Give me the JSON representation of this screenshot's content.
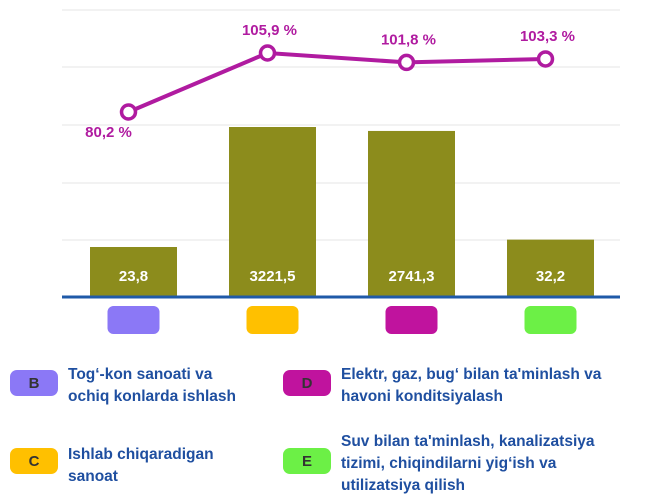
{
  "chart_data": {
    "type": "bar",
    "categories": [
      "B",
      "C",
      "D",
      "E"
    ],
    "category_colors": [
      "#8b78f6",
      "#ffc000",
      "#c0139e",
      "#6cf046"
    ],
    "bar_color": "#8c8c1c",
    "values": [
      23.8,
      3221.5,
      2741.3,
      32.2
    ],
    "value_labels": [
      "23,8",
      "3221,5",
      "2741,3",
      "32,2"
    ],
    "line": {
      "color": "#b01ba0",
      "values": [
        80.2,
        105.9,
        101.8,
        103.3
      ],
      "value_labels": [
        "80,2 %",
        "105,9 %",
        "101,8 %",
        "103,3 %"
      ]
    },
    "descriptions": [
      [
        "Tog‘-kon sanoati va",
        "ochiq konlarda ishlash"
      ],
      [
        "Ishlab chiqaradigan",
        "sanoat"
      ],
      [
        "Elektr, gaz, bug‘ bilan ta'minlash va",
        "havoni konditsiyalash"
      ],
      [
        "Suv bilan ta'minlash, kanalizatsiya",
        "tizimi, chiqindilarni yig‘ish va",
        "utilizatsiya qilish"
      ]
    ],
    "grid": true
  }
}
